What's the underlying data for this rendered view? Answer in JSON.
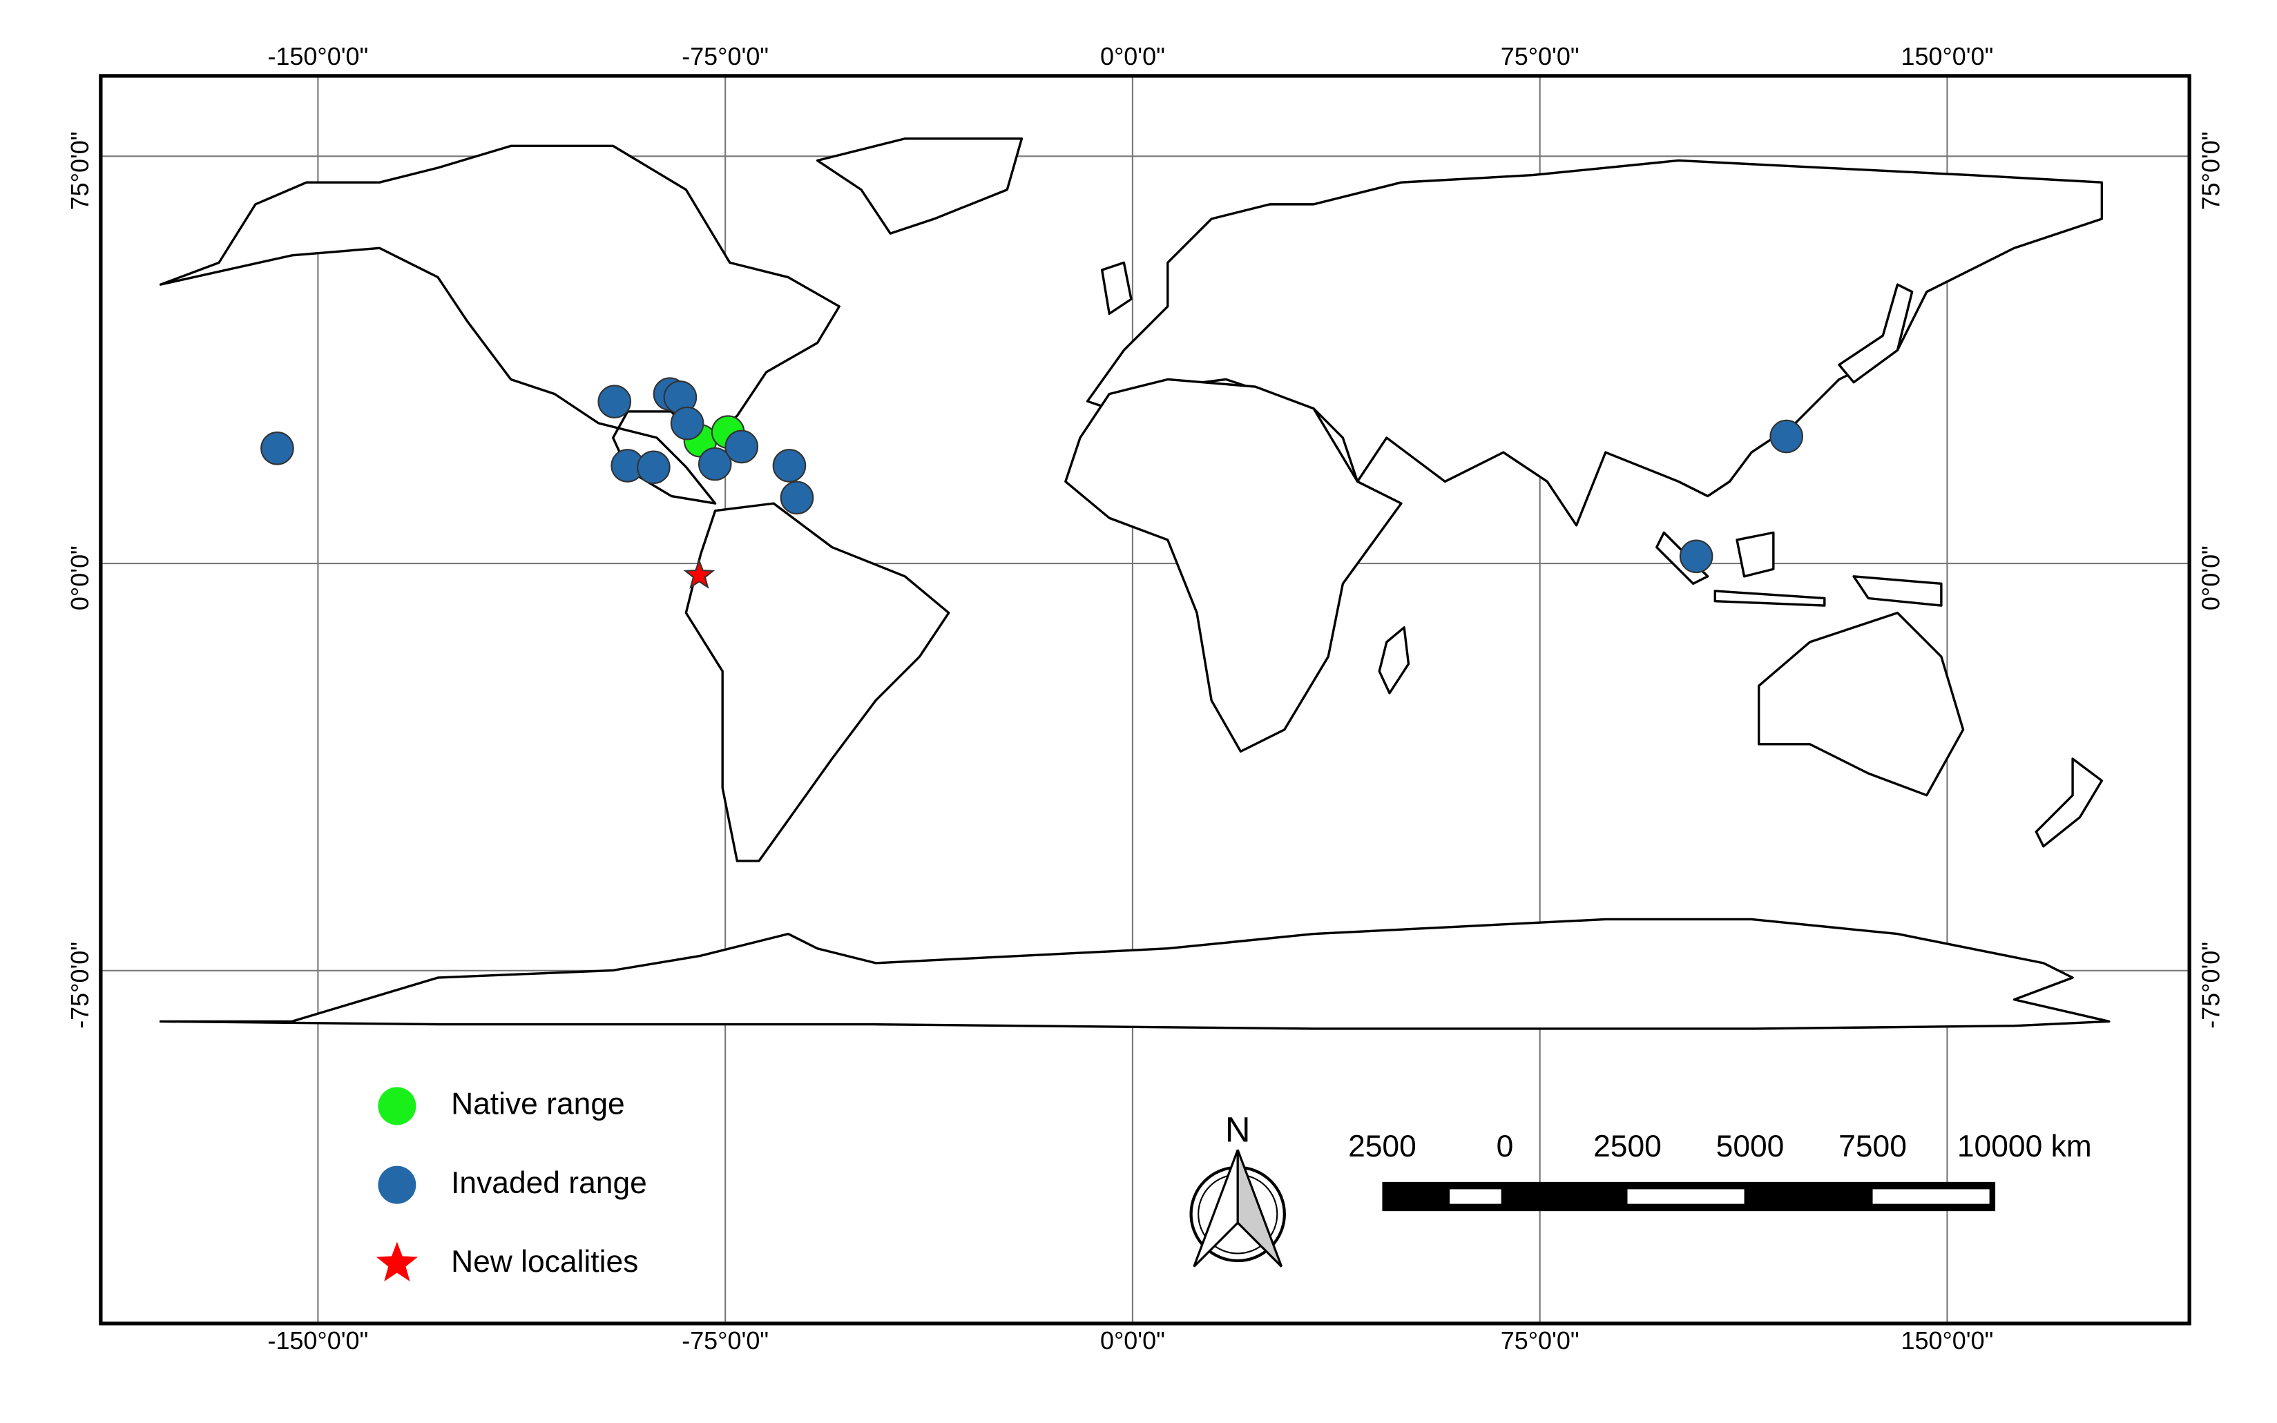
{
  "map": {
    "lonlim": [
      -190,
      194.6
    ],
    "latlim": [
      -140,
      89.8
    ],
    "lonticks": [
      {
        "value": -150,
        "label": "-150°0'0\""
      },
      {
        "value": -75,
        "label": "-75°0'0\""
      },
      {
        "value": 0,
        "label": "0°0'0\""
      },
      {
        "value": 75,
        "label": "75°0'0\""
      },
      {
        "value": 150,
        "label": "150°0'0\""
      }
    ],
    "latticks": [
      {
        "value": -75,
        "label": "-75°0'0\""
      },
      {
        "value": 0,
        "label": "0°0'0\""
      },
      {
        "value": 75,
        "label": "75°0'0\""
      }
    ],
    "grid": true,
    "series": [
      {
        "name": "Native range",
        "color": "#19f019",
        "marker": "circle",
        "lon": [
          -79.6,
          -74.5
        ],
        "lat": [
          22.6,
          24.2
        ]
      },
      {
        "name": "Invaded range",
        "color": "#2468a8",
        "marker": "circle",
        "lon": [
          -157.5,
          -95.4,
          -85.2,
          -83.3,
          -82.0,
          -93.0,
          -88.2,
          -76.9,
          -72.0,
          -63.2,
          -61.8,
          103.8,
          120.4
        ],
        "lat": [
          21.2,
          29.8,
          31.2,
          30.6,
          25.8,
          18.0,
          17.7,
          18.3,
          21.5,
          18.0,
          12.1,
          1.3,
          23.4
        ]
      },
      {
        "name": "New localities",
        "color": "#ff0000",
        "marker": "star",
        "lon": [
          -79.8
        ],
        "lat": [
          -2.2
        ]
      }
    ]
  },
  "scale_bar": {
    "ticks": [
      {
        "value": -2500,
        "label": "2500"
      },
      {
        "value": 0,
        "label": "0"
      },
      {
        "value": 2500,
        "label": "2500"
      },
      {
        "value": 5000,
        "label": "5000"
      },
      {
        "value": 7500,
        "label": "7500"
      },
      {
        "value": 10000,
        "label": "10000 km"
      }
    ]
  },
  "north_arrow": {
    "label": "N"
  }
}
